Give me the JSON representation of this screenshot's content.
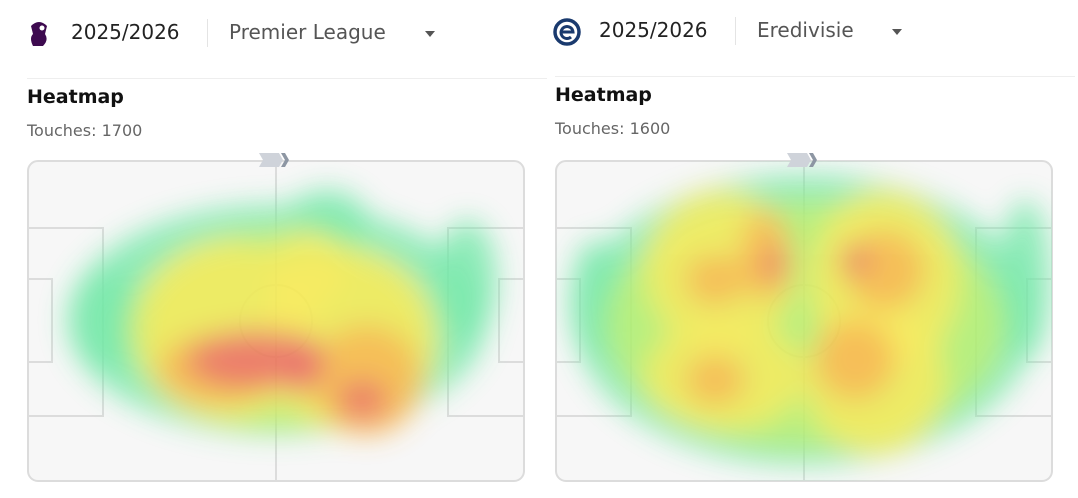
{
  "panels": [
    {
      "season": "2025/2026",
      "league": "Premier League",
      "heatmap": {
        "title": "Heatmap",
        "touches": "Touches: 1700"
      }
    },
    {
      "season": "2025/2026",
      "league": "Eredivisie",
      "heatmap": {
        "title": "Heatmap",
        "touches": "Touches: 1600"
      }
    }
  ]
}
